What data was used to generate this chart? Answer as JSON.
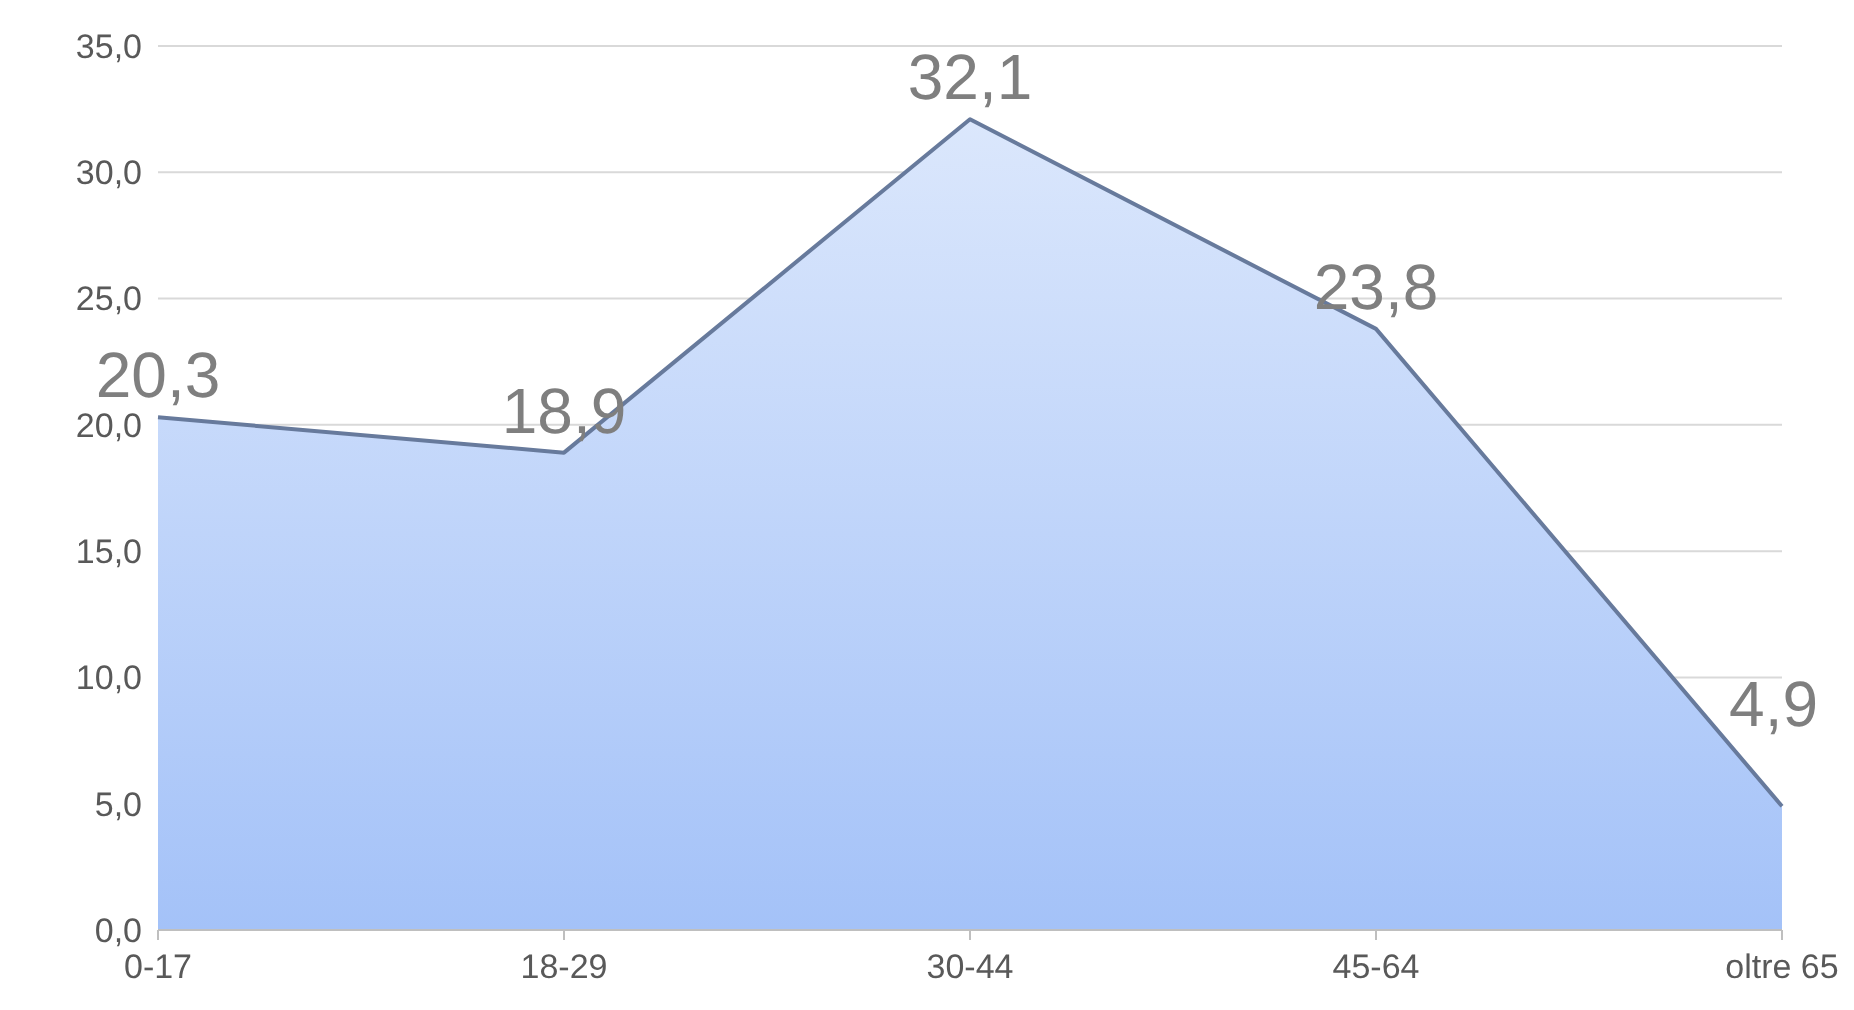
{
  "chart_data": {
    "type": "area",
    "categories": [
      "0-17",
      "18-29",
      "30-44",
      "45-64",
      "oltre 65"
    ],
    "series": [
      {
        "color": "#a4c2f8",
        "values": [
          20.3,
          18.9,
          32.1,
          23.8,
          4.9
        ],
        "value_labels": [
          "20,3",
          "18,9",
          "32,1",
          "23,8",
          "4,9"
        ]
      }
    ],
    "ylim": [
      0,
      35
    ],
    "yticks": [
      {
        "value": 0,
        "label": "0,0"
      },
      {
        "value": 5,
        "label": "5,0"
      },
      {
        "value": 10,
        "label": "10,0"
      },
      {
        "value": 15,
        "label": "15,0"
      },
      {
        "value": 20,
        "label": "20,0"
      },
      {
        "value": 25,
        "label": "25,0"
      },
      {
        "value": 30,
        "label": "30,0"
      },
      {
        "value": 35,
        "label": "35,0"
      }
    ],
    "grid": "y"
  }
}
